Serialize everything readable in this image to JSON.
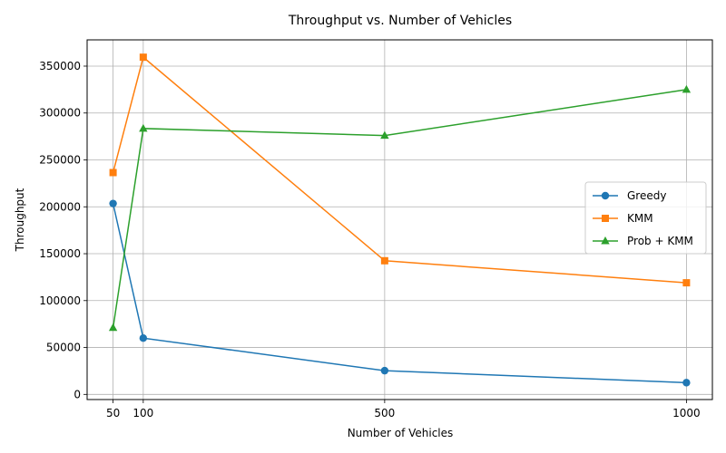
{
  "chart_data": {
    "type": "line",
    "title": "Throughput vs. Number of Vehicles",
    "xlabel": "Number of Vehicles",
    "ylabel": "Throughput",
    "x": [
      50,
      100,
      500,
      1000
    ],
    "xticks": [
      50,
      100,
      500,
      1000
    ],
    "xlim": [
      7,
      1043
    ],
    "yticks": [
      0,
      50000,
      100000,
      150000,
      200000,
      250000,
      300000,
      350000
    ],
    "ylim": [
      -5500,
      378000
    ],
    "grid": true,
    "legend_position": "center-right",
    "series": [
      {
        "name": "Greedy",
        "color": "#1f77b4",
        "marker": "circle",
        "values": [
          203500,
          60000,
          25300,
          12500
        ]
      },
      {
        "name": "KMM",
        "color": "#ff7f0e",
        "marker": "square",
        "values": [
          236500,
          359500,
          142500,
          119000
        ]
      },
      {
        "name": "Prob + KMM",
        "color": "#2ca02c",
        "marker": "triangle",
        "values": [
          71000,
          283500,
          276000,
          325000
        ]
      }
    ]
  }
}
